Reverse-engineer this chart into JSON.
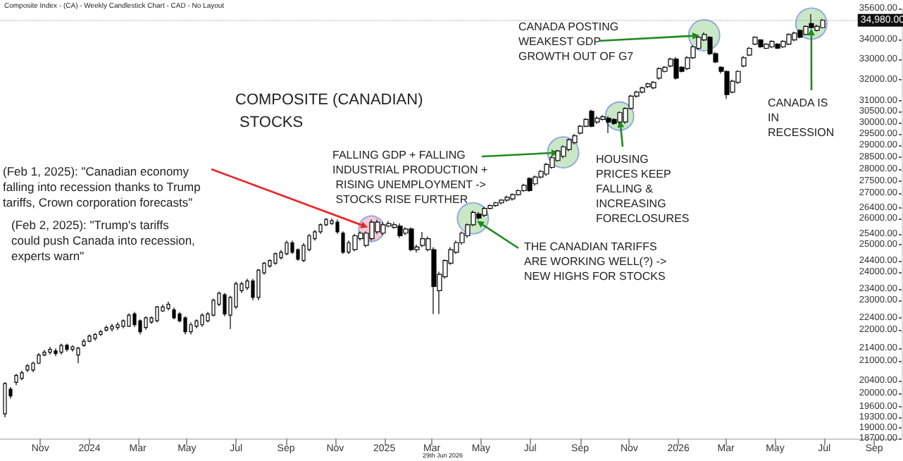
{
  "chart_data": {
    "type": "candlestick",
    "title": "COMPOSITE (CANADIAN) STOCKS",
    "x": [
      "2023-09-18",
      "2023-09-25",
      "2023-10-02",
      "2023-10-09",
      "2023-10-16",
      "2023-10-23",
      "2023-10-30",
      "2023-11-06",
      "2023-11-13",
      "2023-11-20",
      "2023-11-27",
      "2023-12-04",
      "2023-12-11",
      "2023-12-18",
      "2023-12-25",
      "2024-01-01",
      "2024-01-08",
      "2024-01-15",
      "2024-01-22",
      "2024-01-29",
      "2024-02-05",
      "2024-02-12",
      "2024-02-19",
      "2024-02-26",
      "2024-03-04",
      "2024-03-11",
      "2024-03-18",
      "2024-03-25",
      "2024-04-01",
      "2024-04-08",
      "2024-04-15",
      "2024-04-22",
      "2024-04-29",
      "2024-05-06",
      "2024-05-13",
      "2024-05-20",
      "2024-05-27",
      "2024-06-03",
      "2024-06-10",
      "2024-06-17",
      "2024-06-24",
      "2024-07-01",
      "2024-07-08",
      "2024-07-15",
      "2024-07-22",
      "2024-07-29",
      "2024-08-05",
      "2024-08-12",
      "2024-08-19",
      "2024-08-26",
      "2024-09-02",
      "2024-09-09",
      "2024-09-16",
      "2024-09-23",
      "2024-09-30",
      "2024-10-07",
      "2024-10-14",
      "2024-10-21",
      "2024-10-28",
      "2024-11-04",
      "2024-11-11",
      "2024-11-18",
      "2024-11-25",
      "2024-12-02",
      "2024-12-09",
      "2024-12-16",
      "2024-12-23",
      "2024-12-30",
      "2025-01-06",
      "2025-01-13",
      "2025-01-20",
      "2025-01-27",
      "2025-02-03",
      "2025-02-10",
      "2025-02-17",
      "2025-02-24",
      "2025-03-03",
      "2025-03-10",
      "2025-03-17",
      "2025-03-24",
      "2025-03-31",
      "2025-04-07",
      "2025-04-14",
      "2025-04-21",
      "2025-04-28",
      "2025-05-05",
      "2025-05-12",
      "2025-05-19",
      "2025-05-26",
      "2025-06-02",
      "2025-06-09",
      "2025-06-16",
      "2025-06-23",
      "2025-06-30",
      "2025-07-07",
      "2025-07-14",
      "2025-07-21",
      "2025-07-28",
      "2025-08-04",
      "2025-08-11",
      "2025-08-18",
      "2025-08-25",
      "2025-09-01",
      "2025-09-08",
      "2025-09-15",
      "2025-09-22",
      "2025-09-29",
      "2025-10-06",
      "2025-10-13",
      "2025-10-20",
      "2025-10-27",
      "2025-11-03",
      "2025-11-10",
      "2025-11-17",
      "2025-11-24",
      "2025-12-01",
      "2025-12-08",
      "2025-12-15",
      "2025-12-22",
      "2025-12-29",
      "2026-01-05",
      "2026-01-12",
      "2026-01-19",
      "2026-01-26",
      "2026-02-02",
      "2026-02-09",
      "2026-02-16",
      "2026-02-23",
      "2026-03-02",
      "2026-03-09",
      "2026-03-16",
      "2026-03-23",
      "2026-03-30",
      "2026-04-06",
      "2026-04-13",
      "2026-04-20",
      "2026-04-27",
      "2026-05-04",
      "2026-05-11",
      "2026-05-18",
      "2026-05-25",
      "2026-06-01",
      "2026-06-08",
      "2026-06-15",
      "2026-06-22",
      "2026-06-29"
    ],
    "ohlc": [
      [
        19400,
        20350,
        19300,
        20300
      ],
      [
        20130,
        20200,
        19850,
        19930
      ],
      [
        20340,
        20600,
        20250,
        20550
      ],
      [
        20460,
        20700,
        20400,
        20630
      ],
      [
        20720,
        20900,
        20650,
        20850
      ],
      [
        20720,
        20980,
        20650,
        20930
      ],
      [
        20930,
        21250,
        20900,
        21190
      ],
      [
        21190,
        21350,
        21150,
        21280
      ],
      [
        21280,
        21450,
        21200,
        21370
      ],
      [
        21320,
        21400,
        21150,
        21230
      ],
      [
        21280,
        21550,
        21200,
        21500
      ],
      [
        21500,
        21550,
        21300,
        21370
      ],
      [
        21370,
        21500,
        21300,
        21450
      ],
      [
        21190,
        21450,
        20930,
        21410
      ],
      [
        21500,
        21700,
        21450,
        21630
      ],
      [
        21630,
        21850,
        21600,
        21800
      ],
      [
        21720,
        21900,
        21650,
        21850
      ],
      [
        21850,
        22000,
        21800,
        21940
      ],
      [
        21990,
        22150,
        21950,
        22080
      ],
      [
        22030,
        22200,
        21950,
        22120
      ],
      [
        22080,
        22250,
        22000,
        22170
      ],
      [
        22120,
        22350,
        22050,
        22300
      ],
      [
        22120,
        22550,
        22100,
        22490
      ],
      [
        22530,
        22600,
        22100,
        22170
      ],
      [
        22300,
        22350,
        21850,
        21940
      ],
      [
        22080,
        22450,
        22000,
        22400
      ],
      [
        22260,
        22450,
        22200,
        22400
      ],
      [
        22300,
        22800,
        22250,
        22770
      ],
      [
        22630,
        22850,
        22600,
        22770
      ],
      [
        22720,
        22950,
        22650,
        22860
      ],
      [
        22670,
        22750,
        22350,
        22400
      ],
      [
        22530,
        22600,
        22250,
        22300
      ],
      [
        22400,
        22450,
        21850,
        21940
      ],
      [
        21940,
        22250,
        21850,
        22170
      ],
      [
        22120,
        22350,
        22050,
        22300
      ],
      [
        22170,
        22550,
        22100,
        22490
      ],
      [
        22300,
        22600,
        22250,
        22530
      ],
      [
        22490,
        23050,
        22450,
        23000
      ],
      [
        22860,
        23300,
        22800,
        23240
      ],
      [
        23190,
        23250,
        22450,
        22530
      ],
      [
        22490,
        23150,
        22030,
        23100
      ],
      [
        22770,
        23650,
        22700,
        23570
      ],
      [
        23330,
        23650,
        23250,
        23570
      ],
      [
        23430,
        23750,
        23350,
        23670
      ],
      [
        23670,
        23750,
        23000,
        23100
      ],
      [
        23100,
        24100,
        23000,
        24060
      ],
      [
        23960,
        24350,
        23900,
        24310
      ],
      [
        24210,
        24450,
        24150,
        24410
      ],
      [
        24310,
        24700,
        24250,
        24660
      ],
      [
        24510,
        24800,
        24450,
        24710
      ],
      [
        24660,
        25150,
        24600,
        25070
      ],
      [
        25070,
        25150,
        24650,
        24710
      ],
      [
        24810,
        24850,
        24400,
        24460
      ],
      [
        24410,
        25050,
        24350,
        24970
      ],
      [
        24810,
        25400,
        24750,
        25330
      ],
      [
        25220,
        25550,
        25150,
        25480
      ],
      [
        25480,
        25800,
        25400,
        25750
      ],
      [
        25750,
        26000,
        25700,
        25960
      ],
      [
        25800,
        26000,
        25750,
        25910
      ],
      [
        25850,
        25950,
        25400,
        25480
      ],
      [
        25430,
        25500,
        24650,
        24710
      ],
      [
        24710,
        25150,
        24650,
        25070
      ],
      [
        24810,
        25400,
        24750,
        25330
      ],
      [
        25220,
        25500,
        25150,
        25430
      ],
      [
        24970,
        25500,
        24900,
        25430
      ],
      [
        25220,
        25950,
        25150,
        25850
      ],
      [
        25480,
        25950,
        25400,
        25850
      ],
      [
        25430,
        25850,
        25350,
        25750
      ],
      [
        25700,
        25900,
        25650,
        25800
      ],
      [
        25650,
        25850,
        25600,
        25750
      ],
      [
        25700,
        25800,
        25250,
        25330
      ],
      [
        25430,
        25650,
        25350,
        25590
      ],
      [
        25590,
        25650,
        24750,
        24810
      ],
      [
        24810,
        25000,
        24700,
        24910
      ],
      [
        24970,
        25480,
        24900,
        25220
      ],
      [
        24810,
        25300,
        24750,
        25220
      ],
      [
        24810,
        24900,
        22530,
        23480
      ],
      [
        23330,
        24000,
        22530,
        23910
      ],
      [
        23820,
        24450,
        23750,
        24410
      ],
      [
        24310,
        24900,
        24250,
        24810
      ],
      [
        24710,
        25150,
        24650,
        25070
      ],
      [
        25070,
        25500,
        25000,
        25430
      ],
      [
        25330,
        25800,
        25250,
        25750
      ],
      [
        25750,
        26300,
        25700,
        26230
      ],
      [
        26170,
        26250,
        25950,
        26010
      ],
      [
        26120,
        26450,
        26050,
        26390
      ],
      [
        26390,
        26550,
        26350,
        26500
      ],
      [
        26500,
        26650,
        26450,
        26610
      ],
      [
        26610,
        26750,
        26550,
        26720
      ],
      [
        26720,
        26900,
        26650,
        26830
      ],
      [
        26770,
        26990,
        26700,
        26940
      ],
      [
        26940,
        27150,
        26900,
        27100
      ],
      [
        27100,
        27380,
        27050,
        27320
      ],
      [
        27600,
        27650,
        27050,
        27100
      ],
      [
        27380,
        27720,
        27300,
        27660
      ],
      [
        27660,
        27950,
        27600,
        27890
      ],
      [
        27780,
        28250,
        27700,
        28180
      ],
      [
        28060,
        28550,
        28000,
        28470
      ],
      [
        28350,
        28800,
        28300,
        28760
      ],
      [
        28530,
        29000,
        28450,
        28940
      ],
      [
        28820,
        29300,
        28750,
        29240
      ],
      [
        29120,
        29500,
        29050,
        29420
      ],
      [
        29540,
        29900,
        29480,
        29840
      ],
      [
        29840,
        30200,
        29800,
        30150
      ],
      [
        30520,
        30600,
        29800,
        29840
      ],
      [
        30030,
        30300,
        29950,
        30210
      ],
      [
        30150,
        30350,
        30100,
        30270
      ],
      [
        30210,
        30300,
        29540,
        30030
      ],
      [
        30150,
        30200,
        29900,
        29970
      ],
      [
        30030,
        30520,
        29950,
        30460
      ],
      [
        30030,
        30700,
        29950,
        30650
      ],
      [
        30650,
        31280,
        30600,
        31220
      ],
      [
        31220,
        31480,
        31150,
        31410
      ],
      [
        31410,
        31670,
        31350,
        31610
      ],
      [
        31670,
        31850,
        31600,
        31800
      ],
      [
        31610,
        31930,
        31550,
        31870
      ],
      [
        32070,
        32600,
        32000,
        32530
      ],
      [
        32400,
        32650,
        32350,
        32600
      ],
      [
        32660,
        33070,
        32600,
        33000
      ],
      [
        33000,
        33100,
        32000,
        32070
      ],
      [
        32600,
        32650,
        32350,
        32400
      ],
      [
        32530,
        33150,
        32450,
        33070
      ],
      [
        33070,
        33700,
        33000,
        33610
      ],
      [
        33540,
        34150,
        33450,
        34100
      ],
      [
        33960,
        34350,
        33900,
        34240
      ],
      [
        34100,
        34150,
        33200,
        33270
      ],
      [
        33270,
        33350,
        32800,
        32860
      ],
      [
        32600,
        32650,
        32300,
        32400
      ],
      [
        32400,
        32450,
        31090,
        31290
      ],
      [
        31410,
        32000,
        31350,
        31930
      ],
      [
        31870,
        32450,
        31800,
        32400
      ],
      [
        32660,
        33150,
        32600,
        33070
      ],
      [
        33200,
        33600,
        33150,
        33540
      ],
      [
        33750,
        34150,
        33700,
        34100
      ],
      [
        33960,
        34000,
        33550,
        33610
      ],
      [
        33540,
        33800,
        33500,
        33750
      ],
      [
        33610,
        33950,
        33550,
        33890
      ],
      [
        33750,
        33800,
        33500,
        33540
      ],
      [
        33610,
        33950,
        33550,
        33890
      ],
      [
        33750,
        34300,
        33700,
        34240
      ],
      [
        33960,
        34380,
        33900,
        34310
      ],
      [
        34450,
        34500,
        34050,
        34100
      ],
      [
        34240,
        34700,
        34200,
        34660
      ],
      [
        34810,
        35300,
        34550,
        34590
      ],
      [
        34450,
        34750,
        34400,
        34660
      ],
      [
        34590,
        35050,
        34550,
        34980
      ]
    ],
    "log": true,
    "xlim": [
      "2023-09-12",
      "2026-10-05"
    ],
    "xticks": [
      {
        "value": "2023-11-01",
        "label": "Nov"
      },
      {
        "value": "2024-01-01",
        "label": "2024"
      },
      {
        "value": "2024-03-01",
        "label": "Mar"
      },
      {
        "value": "2024-05-01",
        "label": "May"
      },
      {
        "value": "2024-07-01",
        "label": "Jul"
      },
      {
        "value": "2024-09-01",
        "label": "Sep"
      },
      {
        "value": "2024-11-01",
        "label": "Nov"
      },
      {
        "value": "2025-01-01",
        "label": "2025"
      },
      {
        "value": "2025-03-01",
        "label": "Mar"
      },
      {
        "value": "2025-05-01",
        "label": "May"
      },
      {
        "value": "2025-07-01",
        "label": "Jul"
      },
      {
        "value": "2025-09-01",
        "label": "Sep"
      },
      {
        "value": "2025-11-01",
        "label": "Nov"
      },
      {
        "value": "2026-01-01",
        "label": "2026"
      },
      {
        "value": "2026-03-01",
        "label": "Mar"
      },
      {
        "value": "2026-05-01",
        "label": "May"
      },
      {
        "value": "2026-07-01",
        "label": "Jul"
      },
      {
        "value": "2026-09-01",
        "label": "Sep"
      }
    ],
    "ylim": [
      18700,
      35600
    ],
    "yticks": [
      {
        "value": 35600,
        "label": "35600.00"
      },
      {
        "value": 34000,
        "label": "34000.00"
      },
      {
        "value": 33000,
        "label": "33000.00"
      },
      {
        "value": 32000,
        "label": "32000.00"
      },
      {
        "value": 31000,
        "label": "31000.00"
      },
      {
        "value": 30500,
        "label": "30500.00"
      },
      {
        "value": 30000,
        "label": "30000.00"
      },
      {
        "value": 29500,
        "label": "29500.00"
      },
      {
        "value": 29000,
        "label": "29000.00"
      },
      {
        "value": 28500,
        "label": "28500.00"
      },
      {
        "value": 28000,
        "label": "28000.00"
      },
      {
        "value": 27500,
        "label": "27500.00"
      },
      {
        "value": 27000,
        "label": "27000.00"
      },
      {
        "value": 26400,
        "label": "26400.00"
      },
      {
        "value": 26000,
        "label": "26000.00"
      },
      {
        "value": 25400,
        "label": "25400.00"
      },
      {
        "value": 25000,
        "label": "25000.00"
      },
      {
        "value": 24400,
        "label": "24400.00"
      },
      {
        "value": 24000,
        "label": "24000.00"
      },
      {
        "value": 23400,
        "label": "23400.00"
      },
      {
        "value": 23000,
        "label": "23000.00"
      },
      {
        "value": 22400,
        "label": "22400.00"
      },
      {
        "value": 22000,
        "label": "22000.00"
      },
      {
        "value": 21400,
        "label": "21400.00"
      },
      {
        "value": 21000,
        "label": "21000.00"
      },
      {
        "value": 20400,
        "label": "20400.00"
      },
      {
        "value": 20000,
        "label": "20000.00"
      },
      {
        "value": 19600,
        "label": "19600.00"
      },
      {
        "value": 19300,
        "label": "19300.00"
      },
      {
        "value": 19000,
        "label": "19000.00"
      },
      {
        "value": 18700,
        "label": "18700.00"
      }
    ],
    "ref_lines": [
      {
        "axis": "y",
        "value": 34980,
        "label": "34,980.00"
      }
    ],
    "annotations": [
      "Composite Index - (CA) - Weekly Candlestick Chart - CAD - No Layout",
      {
        "text": "(Feb 1, 2025): \"Canadian economy falling into recession thanks to Trump tariffs, Crown corporation forecasts\"",
        "x": "2024-12-16",
        "y": 25600
      },
      "(Feb 2, 2025): \"Trump's tariffs could push Canada into recession, experts warn\"",
      {
        "text": "FALLING GDP + FALLING INDUSTRIAL PRODUCTION + RISING UNEMPLOYMENT -> STOCKS RISE FURTHER",
        "x": "2025-08-11",
        "y": 28700
      },
      {
        "text": "THE CANADIAN TARIFFS ARE WORKING WELL(?) -> NEW HIGHS FOR STOCKS",
        "x": "2025-04-21",
        "y": 26000
      },
      {
        "text": "HOUSING PRICES KEEP FALLING & INCREASING FORECLOSURES",
        "x": "2025-10-20",
        "y": 30300
      },
      {
        "text": "CANADA POSTING WEAKEST GDP GROWTH OUT OF G7",
        "x": "2026-02-02",
        "y": 34200
      },
      {
        "text": "CANADA IS IN RECESSION",
        "x": "2026-06-15",
        "y": 34800
      },
      "29th Jun 2026"
    ]
  }
}
